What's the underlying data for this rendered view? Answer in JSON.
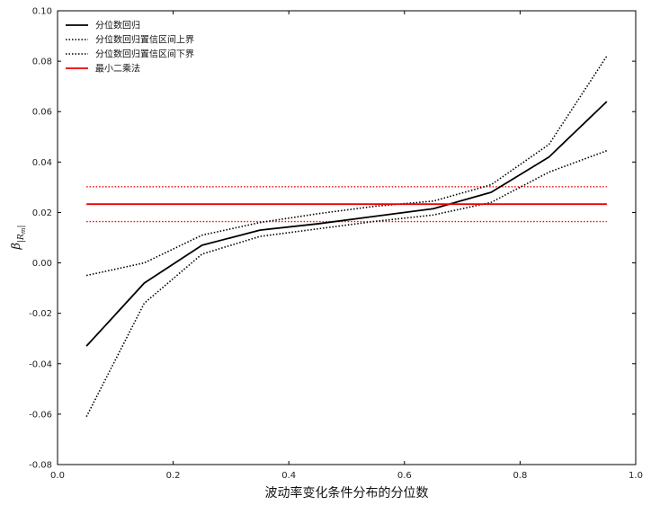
{
  "chart_data": {
    "type": "line",
    "title": "",
    "xlabel": "波动率变化条件分布的分位数",
    "ylabel": "β",
    "ylabel_subscript": "|R",
    "ylabel_subscript2": "m",
    "ylabel_close": "|",
    "xlim": [
      0.0,
      1.0
    ],
    "ylim": [
      -0.08,
      0.1
    ],
    "xticks": [
      0.0,
      0.2,
      0.4,
      0.6,
      0.8,
      1.0
    ],
    "xtick_labels": [
      "0.0",
      "0.2",
      "0.4",
      "0.6",
      "0.8",
      "1.0"
    ],
    "yticks": [
      -0.08,
      -0.06,
      -0.04,
      -0.02,
      0.0,
      0.02,
      0.04,
      0.06,
      0.08,
      0.1
    ],
    "ytick_labels": [
      "-0.08",
      "-0.06",
      "-0.04",
      "-0.02",
      "0.00",
      "0.02",
      "0.04",
      "0.06",
      "0.08",
      "0.10"
    ],
    "grid": false,
    "legend_position": "top-left",
    "x": [
      0.05,
      0.15,
      0.25,
      0.35,
      0.45,
      0.55,
      0.65,
      0.75,
      0.85,
      0.95
    ],
    "series": [
      {
        "name": "分位数回归",
        "color": "#000000",
        "style": "solid",
        "values": [
          -0.033,
          -0.008,
          0.007,
          0.013,
          0.0155,
          0.0185,
          0.0215,
          0.028,
          0.042,
          0.064
        ]
      },
      {
        "name": "分位数回归置信区间上界",
        "color": "#000000",
        "style": "dotted",
        "values": [
          -0.005,
          0.0,
          0.011,
          0.016,
          0.0195,
          0.0225,
          0.0245,
          0.031,
          0.047,
          0.082
        ]
      },
      {
        "name": "分位数回归置信区间下界",
        "color": "#000000",
        "style": "dotted",
        "values": [
          -0.061,
          -0.016,
          0.0035,
          0.0105,
          0.0135,
          0.0165,
          0.019,
          0.024,
          0.036,
          0.0445
        ]
      },
      {
        "name": "最小二乘法",
        "color": "#ee0000",
        "style": "solid",
        "values": [
          0.0233,
          0.0233,
          0.0233,
          0.0233,
          0.0233,
          0.0233,
          0.0233,
          0.0233,
          0.0233,
          0.0233
        ]
      }
    ],
    "reference_lines": [
      {
        "value": 0.0302,
        "color": "#ee0000",
        "style": "dotted"
      },
      {
        "value": 0.0164,
        "color": "#ee0000",
        "style": "dotted"
      }
    ]
  }
}
